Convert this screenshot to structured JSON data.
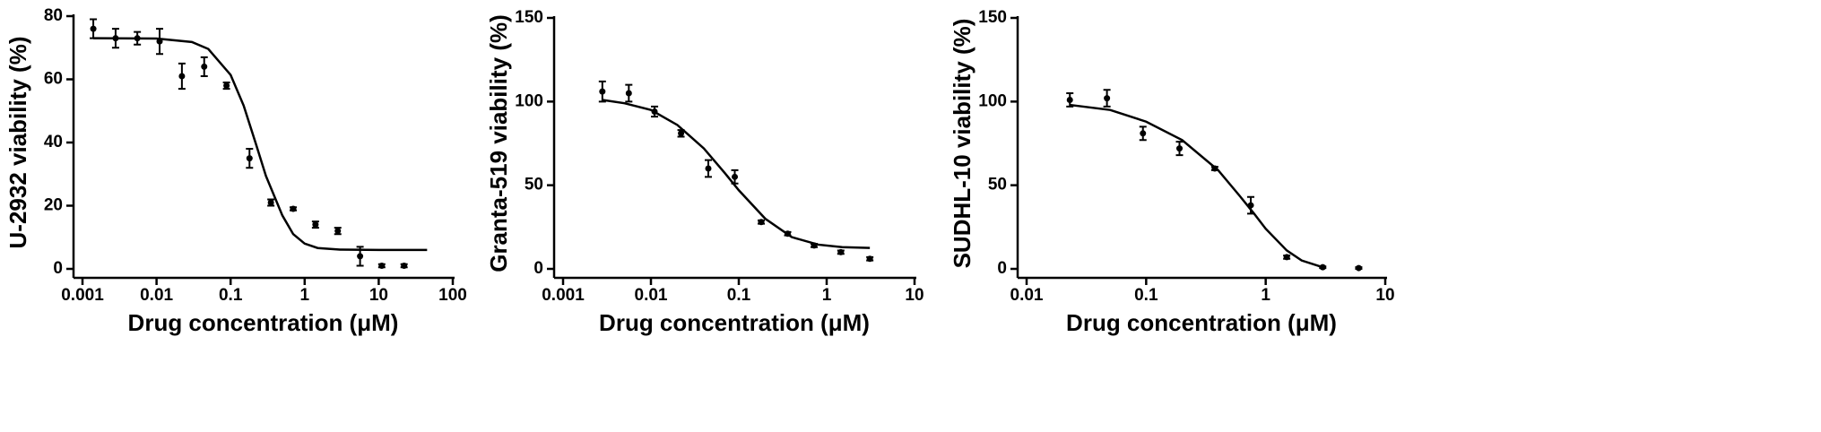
{
  "chart_data": [
    {
      "type": "scatter",
      "xscale": "log",
      "color": "#000000",
      "xlabel": "Drug concentration (μM)",
      "ylabel": "U-2932 viability (%)",
      "xlim": [
        0.001,
        100
      ],
      "xticks": [
        0.001,
        0.01,
        0.1,
        1,
        10,
        100
      ],
      "ylim": [
        0,
        80
      ],
      "yticks": [
        0,
        20,
        40,
        60,
        80
      ],
      "points": {
        "x": [
          0.0014,
          0.0028,
          0.0055,
          0.011,
          0.022,
          0.044,
          0.088,
          0.18,
          0.35,
          0.7,
          1.4,
          2.8,
          5.6,
          11,
          22
        ],
        "values": [
          76,
          73,
          73,
          72,
          61,
          64,
          58,
          35,
          21,
          19,
          14,
          12,
          4,
          1,
          1
        ],
        "errors": [
          3,
          3,
          2,
          4,
          4,
          3,
          1,
          3,
          1,
          0.5,
          1,
          1,
          3,
          0.5,
          0.5
        ]
      },
      "curve": {
        "x": [
          0.0014,
          0.01,
          0.03,
          0.05,
          0.1,
          0.15,
          0.22,
          0.3,
          0.5,
          0.7,
          1,
          1.5,
          3,
          10,
          45
        ],
        "values": [
          73,
          72.9,
          71.8,
          69.6,
          61.4,
          51.7,
          39.5,
          29.4,
          16.9,
          11,
          8,
          6.6,
          6.1,
          6,
          6
        ]
      }
    },
    {
      "type": "scatter",
      "xscale": "log",
      "color": "#000000",
      "xlabel": "Drug concentration (μM)",
      "ylabel": "Granta-519 viability (%)",
      "xlim": [
        0.001,
        10
      ],
      "xticks": [
        0.001,
        0.01,
        0.1,
        1,
        10
      ],
      "ylim": [
        0,
        150
      ],
      "yticks": [
        0,
        50,
        100,
        150
      ],
      "points": {
        "x": [
          0.0028,
          0.0056,
          0.011,
          0.022,
          0.045,
          0.09,
          0.18,
          0.36,
          0.72,
          1.45,
          3.1
        ],
        "values": [
          106,
          105,
          94,
          81,
          60,
          55,
          28,
          21,
          14,
          10,
          6
        ],
        "errors": [
          6,
          5,
          3,
          2,
          5,
          4,
          1,
          1,
          1,
          1,
          1
        ]
      },
      "curve": {
        "x": [
          0.0028,
          0.005,
          0.01,
          0.02,
          0.04,
          0.07,
          0.1,
          0.2,
          0.4,
          0.8,
          1.5,
          3.1
        ],
        "values": [
          101,
          99,
          95,
          86,
          72,
          57,
          47,
          30,
          19,
          14.5,
          13,
          12.5
        ]
      }
    },
    {
      "type": "scatter",
      "xscale": "log",
      "color": "#000000",
      "xlabel": "Drug concentration (μM)",
      "ylabel": "SUDHL-10 viability (%)",
      "xlim": [
        0.01,
        10
      ],
      "xticks": [
        0.01,
        0.1,
        1,
        10
      ],
      "ylim": [
        0,
        150
      ],
      "yticks": [
        0,
        50,
        100,
        150
      ],
      "points": {
        "x": [
          0.023,
          0.047,
          0.094,
          0.19,
          0.375,
          0.75,
          1.5,
          3,
          6
        ],
        "values": [
          101,
          102,
          81,
          72,
          60,
          38,
          7,
          1,
          0.5
        ],
        "errors": [
          4,
          5,
          4,
          4,
          1,
          5,
          1,
          0.5,
          0.5
        ]
      },
      "curve": {
        "x": [
          0.023,
          0.05,
          0.1,
          0.2,
          0.4,
          0.6,
          0.8,
          1,
          1.5,
          2,
          3
        ],
        "values": [
          98,
          95,
          88,
          77,
          59,
          44,
          33,
          24,
          11,
          5,
          1
        ]
      }
    }
  ]
}
